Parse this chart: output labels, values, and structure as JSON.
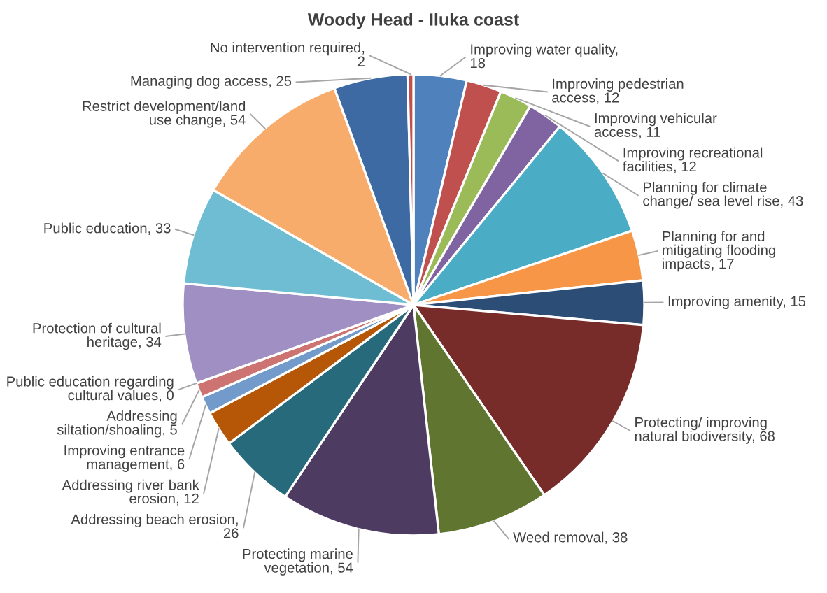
{
  "chart_data": {
    "type": "pie",
    "title": "Woody Head - Iluka coast",
    "categories": [
      "Improving water quality, 18",
      "Improving pedestrian access, 12",
      "Improving vehicular access, 11",
      "Improving recreational facilities, 12",
      "Planning for climate change/ sea level rise, 43",
      "Planning for and mitigating flooding impacts, 17",
      "Improving amenity, 15",
      "Protecting/ improving natural biodiversity, 68",
      "Weed removal, 38",
      "Protecting marine vegetation, 54",
      "Addressing beach erosion, 26",
      "Addressing river bank erosion, 12",
      "Improving entrance management, 6",
      "Addressing siltation/shoaling, 5",
      "Public education regarding cultural values, 0",
      "Protection of cultural heritage, 34",
      "Public education, 33",
      "Restrict development/land use change, 54",
      "Managing dog access, 25",
      "No intervention required, 2"
    ],
    "values": [
      18,
      12,
      11,
      12,
      43,
      17,
      15,
      68,
      38,
      54,
      26,
      12,
      6,
      5,
      0,
      34,
      33,
      54,
      25,
      2
    ],
    "colors": [
      "#4f81bd",
      "#c0504d",
      "#9bbb59",
      "#8064a2",
      "#4bacc6",
      "#f79646",
      "#2c4d75",
      "#772c2a",
      "#5f7530",
      "#4d3b62",
      "#276a7c",
      "#b65708",
      "#729aca",
      "#cd7371",
      "#9c86bd",
      "#a08fc3",
      "#6fbdd3",
      "#f8ac6c",
      "#3d6aa3",
      "#c0504d"
    ]
  }
}
